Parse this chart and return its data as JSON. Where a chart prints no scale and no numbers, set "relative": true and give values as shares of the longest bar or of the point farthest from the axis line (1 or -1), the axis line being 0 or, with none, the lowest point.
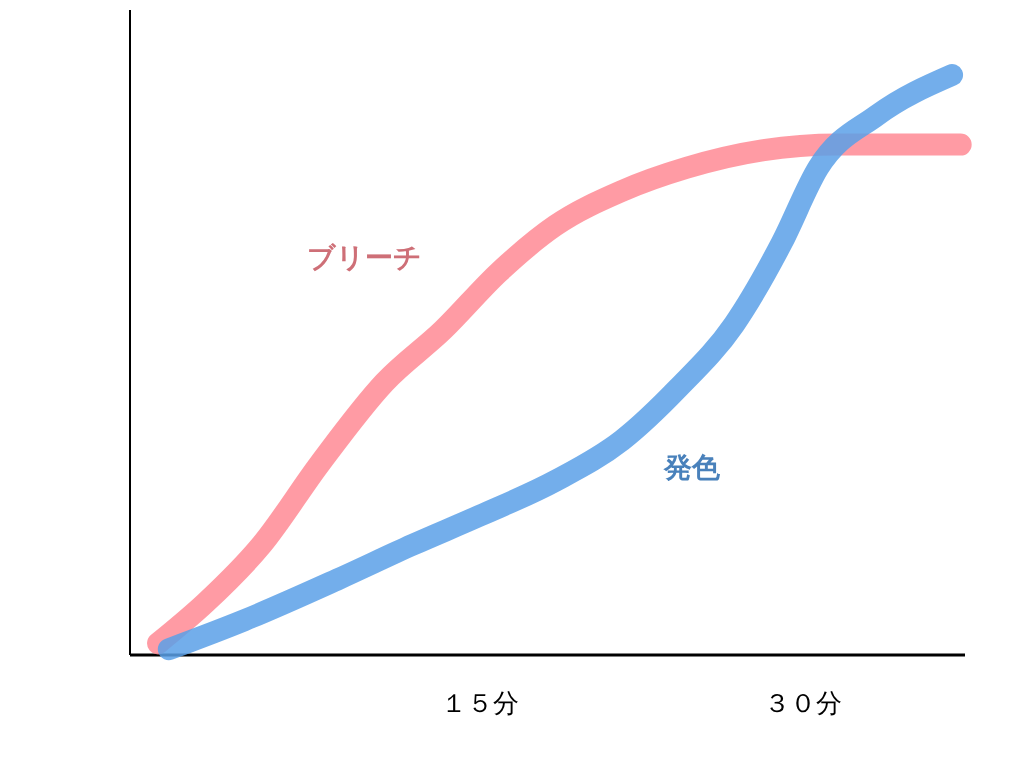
{
  "chart_data": {
    "type": "line",
    "relative": true,
    "legend": false,
    "xlim": [
      -1.2,
      37.5
    ],
    "xticks": [
      {
        "value": 15,
        "label": "１５分"
      },
      {
        "value": 30,
        "label": "３０分"
      }
    ],
    "series": [
      {
        "name": "ブリーチ",
        "color": "#ff8a94",
        "x": [
          0.1,
          2.3,
          4.9,
          7.6,
          10.6,
          13.3,
          15.9,
          18.5,
          21.6,
          24.6,
          28.1,
          31.6,
          37.3
        ],
        "values": [
          0.02,
          0.09,
          0.19,
          0.33,
          0.47,
          0.56,
          0.66,
          0.74,
          0.8,
          0.84,
          0.87,
          0.88,
          0.88
        ]
      },
      {
        "name": "発色",
        "color": "#5aa0e8",
        "x": [
          0.6,
          4.1,
          8.4,
          11.9,
          15,
          18.5,
          21.6,
          24.2,
          26.8,
          29,
          30.7,
          33.4,
          36.9
        ],
        "values": [
          0.01,
          0.06,
          0.13,
          0.19,
          0.24,
          0.3,
          0.37,
          0.46,
          0.57,
          0.71,
          0.84,
          0.93,
          1
        ]
      }
    ]
  }
}
